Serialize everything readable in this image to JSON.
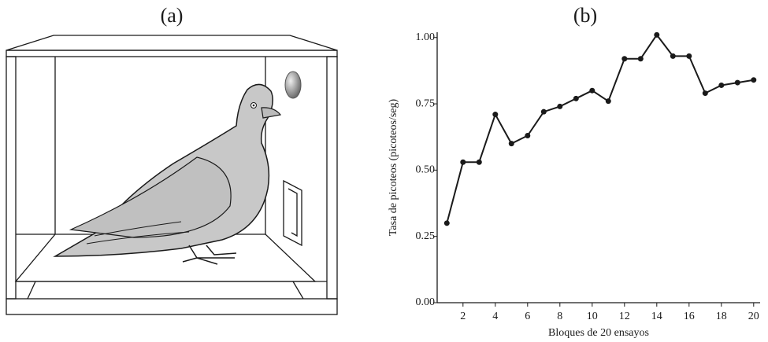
{
  "illustration_label": "(a)",
  "chart_data": {
    "type": "line",
    "title": "(b)",
    "x_label": "Bloques de 20 ensayos",
    "y_label": "Tasa de picoteos (picoteos/seg)",
    "x": [
      1,
      2,
      3,
      4,
      5,
      6,
      7,
      8,
      9,
      10,
      11,
      12,
      13,
      14,
      15,
      16,
      17,
      18,
      19,
      20
    ],
    "values": [
      0.3,
      0.53,
      0.53,
      0.71,
      0.6,
      0.63,
      0.72,
      0.74,
      0.77,
      0.8,
      0.76,
      0.92,
      0.92,
      1.01,
      0.93,
      0.93,
      0.79,
      0.82,
      0.83,
      0.84
    ],
    "color": "#1a1a1a",
    "xlim": [
      0.4,
      20.4
    ],
    "xticks": [
      2,
      4,
      6,
      8,
      10,
      12,
      14,
      16,
      18,
      20
    ],
    "ylim": [
      0,
      1.02
    ],
    "yticks": [
      {
        "value": 0,
        "label": "0.00"
      },
      {
        "value": 0.25,
        "label": "0.25"
      },
      {
        "value": 0.5,
        "label": "0.50"
      },
      {
        "value": 0.75,
        "label": "0.75"
      },
      {
        "value": 1,
        "label": "1.00"
      }
    ],
    "grid": false
  }
}
